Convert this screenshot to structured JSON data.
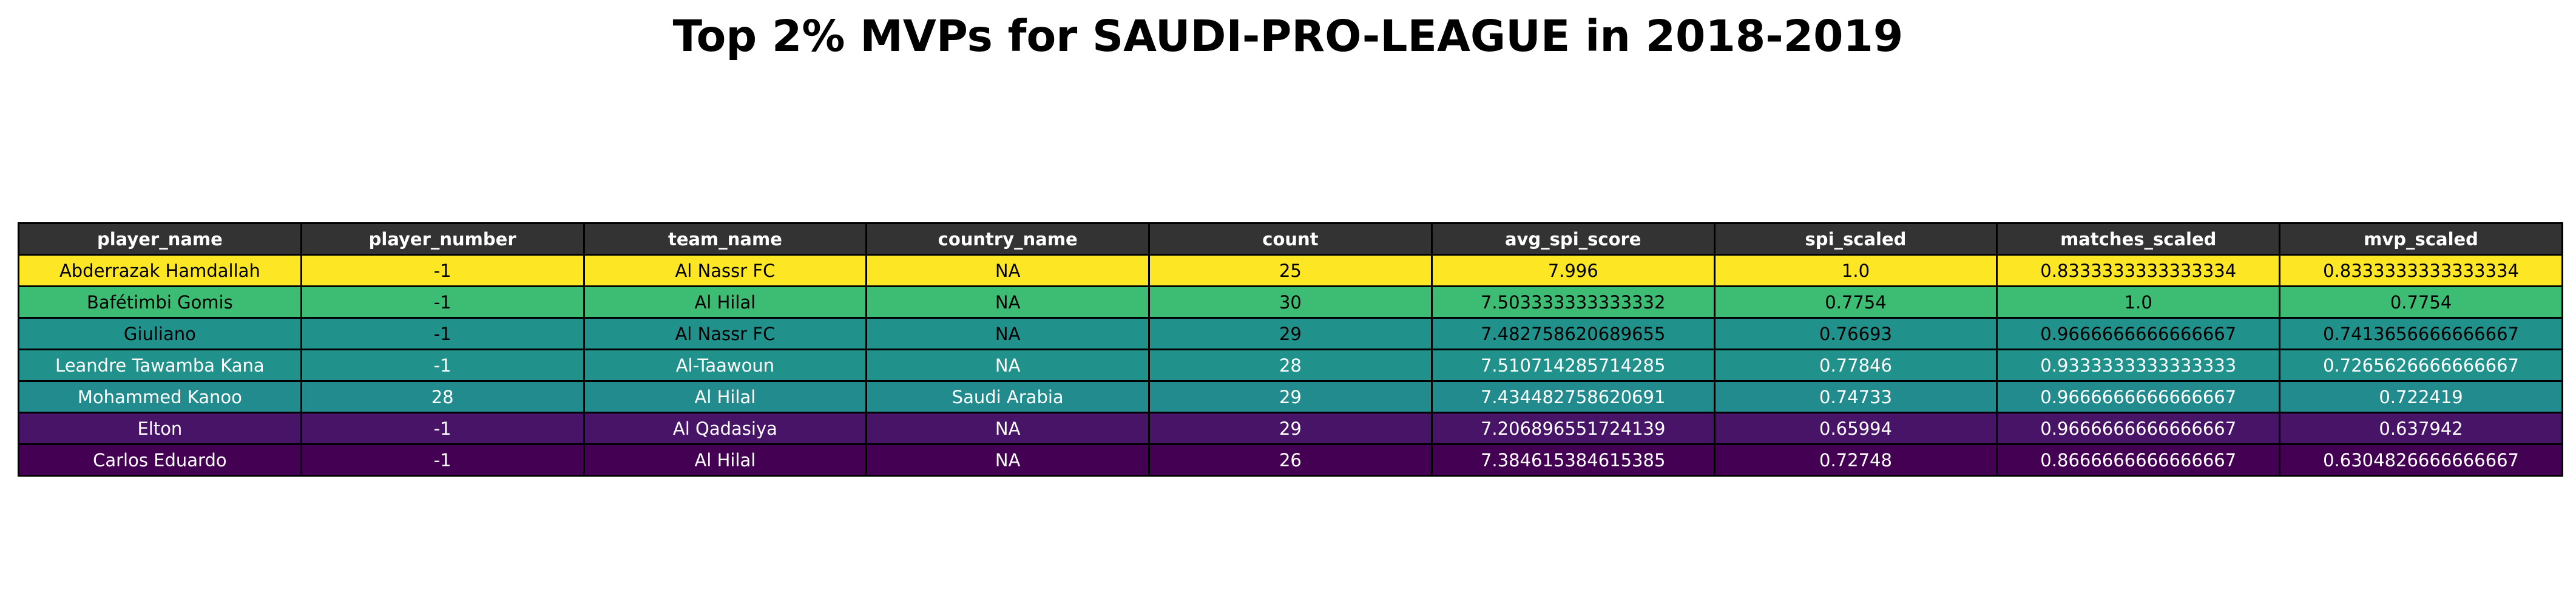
{
  "chart_data": {
    "type": "table",
    "title": "Top 2% MVPs for SAUDI-PRO-LEAGUE in 2018-2019",
    "columns": [
      "player_name",
      "player_number",
      "team_name",
      "country_name",
      "count",
      "avg_spi_score",
      "spi_scaled",
      "matches_scaled",
      "mvp_scaled"
    ],
    "rows": [
      {
        "cells": [
          "Abderrazak Hamdallah",
          "-1",
          "Al Nassr FC",
          "NA",
          "25",
          "7.996",
          "1.0",
          "0.8333333333333334",
          "0.8333333333333334"
        ],
        "fill": "#fde725",
        "text_color": "#000000"
      },
      {
        "cells": [
          "Bafétimbi Gomis",
          "-1",
          "Al Hilal",
          "NA",
          "30",
          "7.503333333333332",
          "0.7754",
          "1.0",
          "0.7754"
        ],
        "fill": "#3dbc74",
        "text_color": "#000000"
      },
      {
        "cells": [
          "Giuliano",
          "-1",
          "Al Nassr FC",
          "NA",
          "29",
          "7.482758620689655",
          "0.76693",
          "0.9666666666666667",
          "0.7413656666666667"
        ],
        "fill": "#21918c",
        "text_color": "#000000"
      },
      {
        "cells": [
          "Leandre Tawamba Kana",
          "-1",
          "Al-Taawoun",
          "NA",
          "28",
          "7.510714285714285",
          "0.77846",
          "0.9333333333333333",
          "0.7265626666666667"
        ],
        "fill": "#21918c",
        "text_color": "#ffffff"
      },
      {
        "cells": [
          "Mohammed Kanoo",
          "28",
          "Al Hilal",
          "Saudi Arabia",
          "29",
          "7.434482758620691",
          "0.74733",
          "0.9666666666666667",
          "0.722419"
        ],
        "fill": "#228b8d",
        "text_color": "#ffffff"
      },
      {
        "cells": [
          "Elton",
          "-1",
          "Al Qadasiya",
          "NA",
          "29",
          "7.206896551724139",
          "0.65994",
          "0.9666666666666667",
          "0.637942"
        ],
        "fill": "#481467",
        "text_color": "#ffffff"
      },
      {
        "cells": [
          "Carlos Eduardo",
          "-1",
          "Al Hilal",
          "NA",
          "26",
          "7.384615384615385",
          "0.72748",
          "0.8666666666666667",
          "0.6304826666666667"
        ],
        "fill": "#440154",
        "text_color": "#ffffff"
      }
    ]
  }
}
